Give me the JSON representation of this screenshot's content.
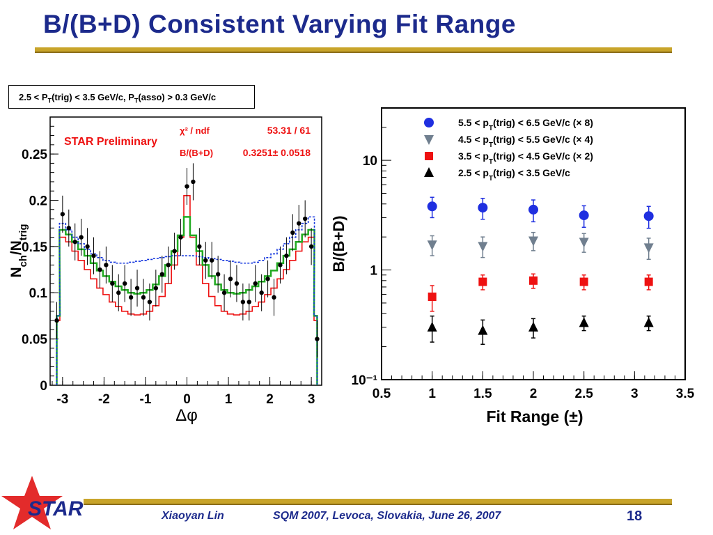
{
  "slide": {
    "title": "B/(B+D) Consistent Varying Fit Range",
    "author": "Xiaoyan Lin",
    "conference": "SQM 2007, Levoca, Slovakia, June 26, 2007",
    "page_number": "18",
    "logo_text": "STAR",
    "colors": {
      "title": "#1c2a8c",
      "gold": "#c8a42a",
      "logo_red": "#e32b2b"
    }
  },
  "left_panel": {
    "condition_box": "2.5 < P_T(trig) < 3.5 GeV/c, P_T(asso) > 0.3 GeV/c",
    "preliminary": "STAR Preliminary",
    "fit_stats": {
      "chi2_label": "χ² / ndf",
      "chi2_value": "53.31 / 61",
      "ratio_label": "B/(B+D)",
      "ratio_value": "0.3251± 0.0518"
    }
  },
  "chart_data": [
    {
      "type": "line",
      "title": "",
      "xlabel": "Δφ",
      "ylabel": "N_ch/N_trig",
      "xlim": [
        -3.3,
        3.25
      ],
      "ylim": [
        0,
        0.29
      ],
      "xticks": [
        "-3",
        "-2",
        "-1",
        "0",
        "1",
        "2",
        "3"
      ],
      "yticks": [
        "0",
        "0.05",
        "0.1",
        "0.15",
        "0.2",
        "0.25"
      ],
      "grid": false,
      "x": [
        -3.14,
        -3.0,
        -2.85,
        -2.7,
        -2.55,
        -2.4,
        -2.25,
        -2.1,
        -1.95,
        -1.8,
        -1.65,
        -1.5,
        -1.35,
        -1.2,
        -1.05,
        -0.9,
        -0.75,
        -0.6,
        -0.45,
        -0.3,
        -0.15,
        0.0,
        0.15,
        0.3,
        0.45,
        0.6,
        0.75,
        0.9,
        1.05,
        1.2,
        1.35,
        1.5,
        1.65,
        1.8,
        1.95,
        2.1,
        2.25,
        2.4,
        2.55,
        2.7,
        2.85,
        3.0,
        3.14
      ],
      "series": [
        {
          "style": "points",
          "color": "#000000",
          "values": [
            0.07,
            0.185,
            0.17,
            0.155,
            0.16,
            0.15,
            0.14,
            0.125,
            0.13,
            0.11,
            0.1,
            0.11,
            0.095,
            0.105,
            0.095,
            0.09,
            0.105,
            0.12,
            0.13,
            0.145,
            0.16,
            0.215,
            0.22,
            0.15,
            0.135,
            0.135,
            0.12,
            0.1,
            0.115,
            0.11,
            0.09,
            0.09,
            0.11,
            0.1,
            0.115,
            0.095,
            0.13,
            0.14,
            0.165,
            0.175,
            0.18,
            0.15,
            0.05
          ],
          "errors": [
            0.02,
            0.02,
            0.02,
            0.02,
            0.02,
            0.02,
            0.02,
            0.02,
            0.02,
            0.02,
            0.02,
            0.02,
            0.02,
            0.02,
            0.02,
            0.02,
            0.02,
            0.02,
            0.02,
            0.02,
            0.02,
            0.02,
            0.02,
            0.02,
            0.02,
            0.02,
            0.02,
            0.02,
            0.02,
            0.02,
            0.02,
            0.02,
            0.02,
            0.02,
            0.02,
            0.02,
            0.02,
            0.02,
            0.02,
            0.02,
            0.02,
            0.02,
            0.02
          ]
        },
        {
          "style": "step-solid",
          "color": "#ee1111",
          "values": [
            0.07,
            0.16,
            0.155,
            0.145,
            0.135,
            0.125,
            0.115,
            0.105,
            0.098,
            0.09,
            0.085,
            0.08,
            0.077,
            0.076,
            0.077,
            0.08,
            0.086,
            0.096,
            0.11,
            0.13,
            0.16,
            0.205,
            0.16,
            0.13,
            0.11,
            0.096,
            0.086,
            0.08,
            0.077,
            0.076,
            0.077,
            0.08,
            0.085,
            0.09,
            0.098,
            0.105,
            0.115,
            0.125,
            0.135,
            0.145,
            0.155,
            0.16,
            0.07
          ]
        },
        {
          "style": "step-solid",
          "color": "#22aa22",
          "values": [
            0.075,
            0.168,
            0.163,
            0.155,
            0.147,
            0.14,
            0.132,
            0.124,
            0.118,
            0.112,
            0.107,
            0.103,
            0.1,
            0.099,
            0.1,
            0.103,
            0.109,
            0.118,
            0.13,
            0.145,
            0.162,
            0.182,
            0.162,
            0.145,
            0.13,
            0.118,
            0.109,
            0.103,
            0.1,
            0.099,
            0.1,
            0.103,
            0.107,
            0.112,
            0.118,
            0.124,
            0.132,
            0.14,
            0.147,
            0.155,
            0.163,
            0.168,
            0.075
          ]
        },
        {
          "style": "step-dashed",
          "color": "#1133dd",
          "values": [
            0.075,
            0.175,
            0.168,
            0.16,
            0.153,
            0.147,
            0.142,
            0.138,
            0.135,
            0.133,
            0.132,
            0.132,
            0.133,
            0.134,
            0.135,
            0.136,
            0.137,
            0.138,
            0.139,
            0.14,
            0.14,
            0.14,
            0.14,
            0.139,
            0.138,
            0.137,
            0.136,
            0.135,
            0.134,
            0.133,
            0.132,
            0.132,
            0.133,
            0.135,
            0.138,
            0.142,
            0.147,
            0.153,
            0.16,
            0.168,
            0.175,
            0.182,
            0.075
          ]
        }
      ]
    },
    {
      "type": "scatter",
      "title": "",
      "xlabel": "Fit Range (±)",
      "ylabel": "B/(B+D)",
      "xlim": [
        0.5,
        3.5
      ],
      "ylim": [
        0.1,
        30
      ],
      "yscale": "log",
      "xticks": [
        "0.5",
        "1",
        "1.5",
        "2",
        "2.5",
        "3",
        "3.5"
      ],
      "yticks": [
        "10⁻¹",
        "1",
        "10"
      ],
      "grid": false,
      "legend_position": "top",
      "x": [
        1,
        1.5,
        2,
        2.5,
        3.14
      ],
      "series": [
        {
          "name": "5.5 < p_T(trig) < 6.5 GeV/c (× 8)",
          "marker": "circle",
          "color": "#1f2fe0",
          "values": [
            3.8,
            3.7,
            3.55,
            3.15,
            3.1
          ],
          "errors": [
            0.8,
            0.8,
            0.8,
            0.7,
            0.7
          ]
        },
        {
          "name": "4.5 < p_T(trig) < 5.5 GeV/c (× 4)",
          "marker": "triangle-down",
          "color": "#707f8f",
          "values": [
            1.7,
            1.65,
            1.85,
            1.8,
            1.6
          ],
          "errors": [
            0.35,
            0.35,
            0.35,
            0.35,
            0.35
          ]
        },
        {
          "name": "3.5 < p_T(trig) < 4.5 GeV/c (× 2)",
          "marker": "square",
          "color": "#ee1111",
          "values": [
            0.57,
            0.78,
            0.8,
            0.78,
            0.78
          ],
          "errors": [
            0.15,
            0.12,
            0.12,
            0.12,
            0.12
          ]
        },
        {
          "name": "2.5 < p_T(trig) < 3.5 GeV/c",
          "marker": "triangle-up",
          "color": "#000000",
          "values": [
            0.3,
            0.28,
            0.3,
            0.33,
            0.33
          ],
          "errors": [
            0.08,
            0.07,
            0.06,
            0.05,
            0.05
          ]
        }
      ]
    }
  ]
}
